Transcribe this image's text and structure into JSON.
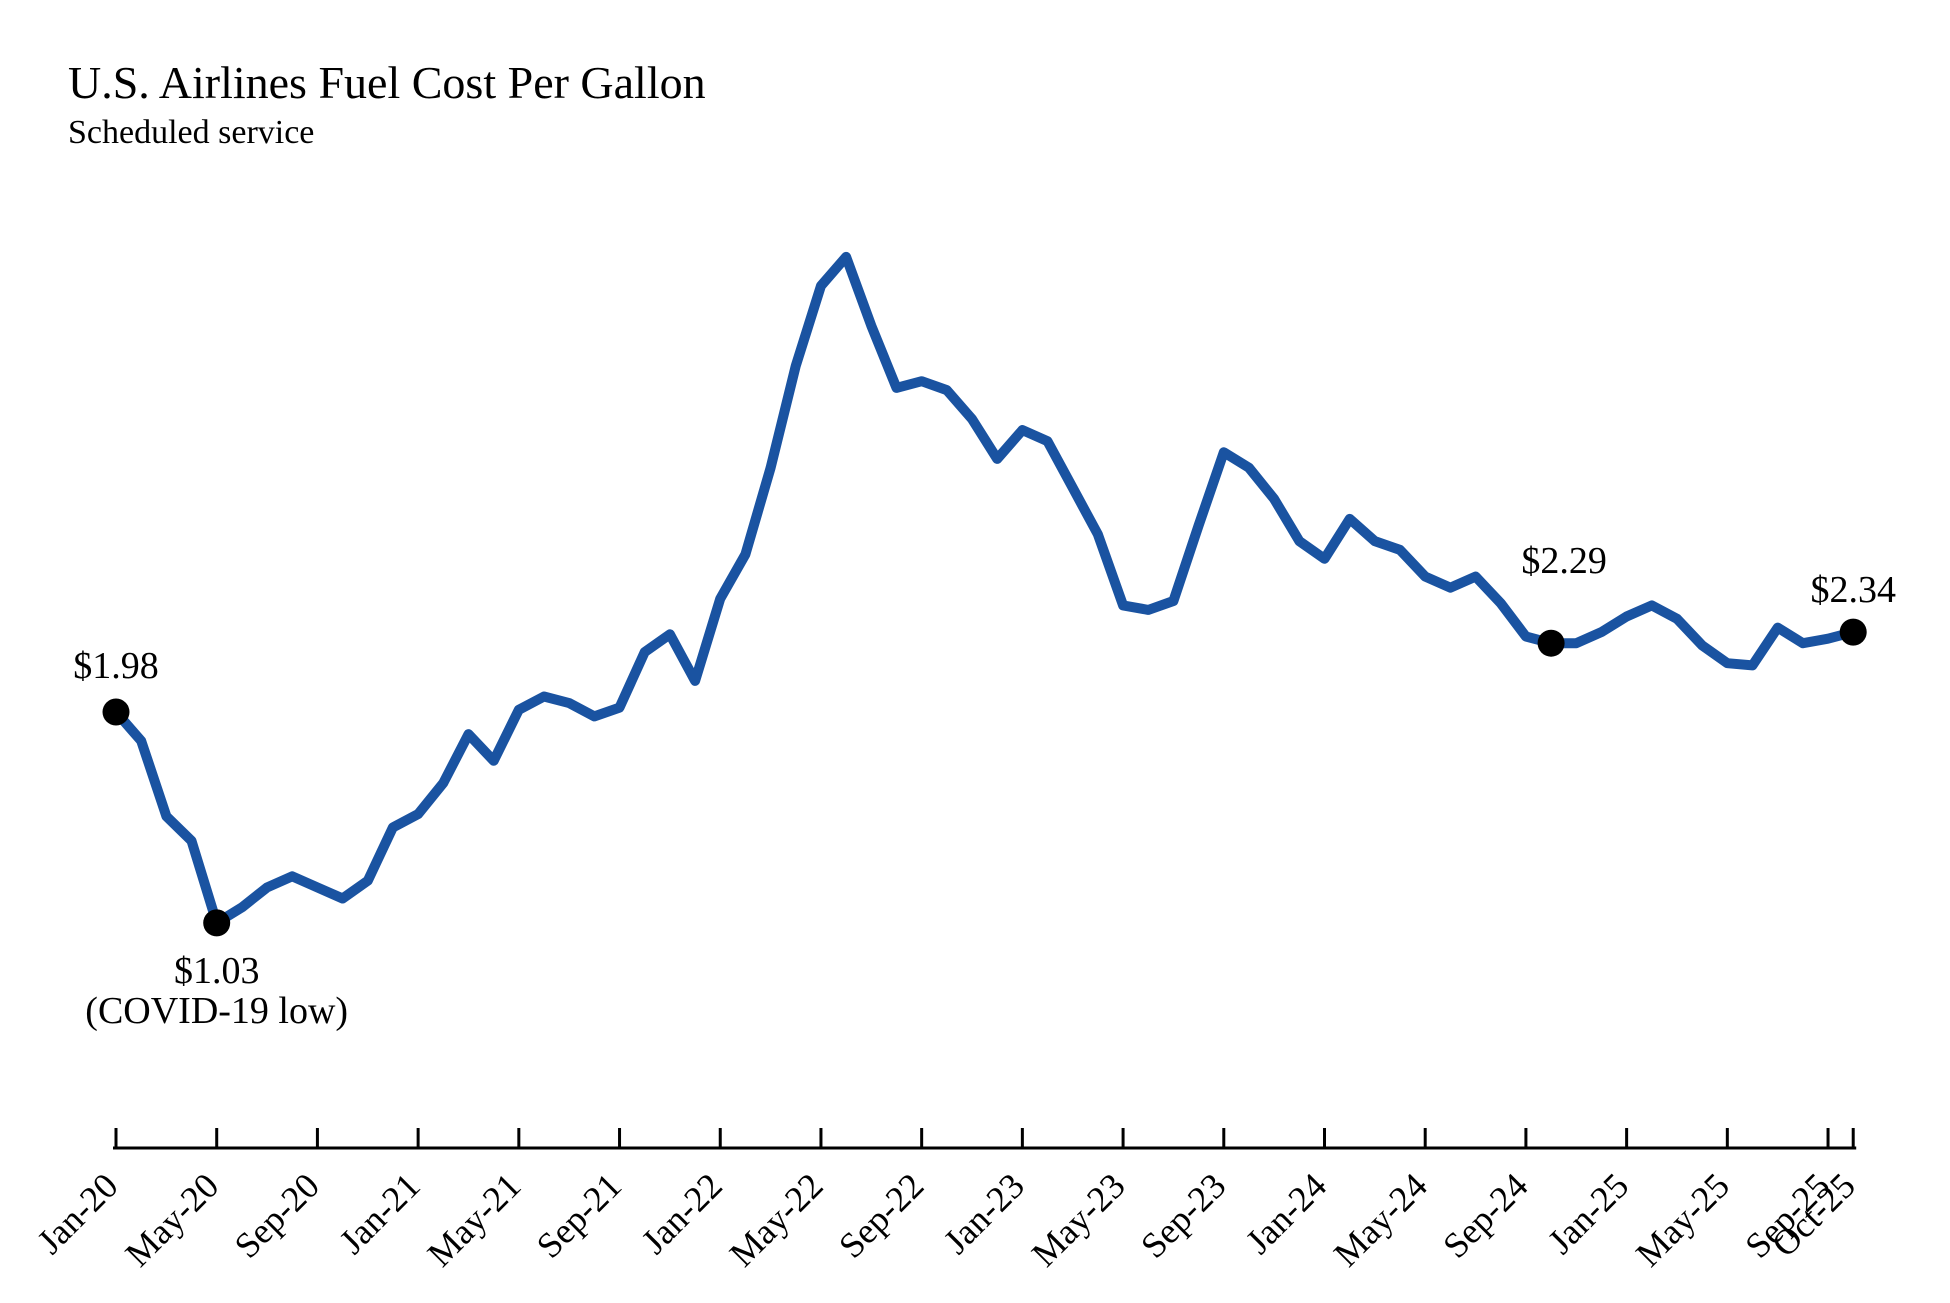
{
  "chart_data": {
    "type": "line",
    "title": "U.S. Airlines Fuel Cost Per Gallon",
    "subtitle": "Scheduled service",
    "unit": "USD per gallon",
    "x_months": [
      "Jan-20",
      "Feb-20",
      "Mar-20",
      "Apr-20",
      "May-20",
      "Jun-20",
      "Jul-20",
      "Aug-20",
      "Sep-20",
      "Oct-20",
      "Nov-20",
      "Dec-20",
      "Jan-21",
      "Feb-21",
      "Mar-21",
      "Apr-21",
      "May-21",
      "Jun-21",
      "Jul-21",
      "Aug-21",
      "Sep-21",
      "Oct-21",
      "Nov-21",
      "Dec-21",
      "Jan-22",
      "Feb-22",
      "Mar-22",
      "Apr-22",
      "May-22",
      "Jun-22",
      "Jul-22",
      "Aug-22",
      "Sep-22",
      "Oct-22",
      "Nov-22",
      "Dec-22",
      "Jan-23",
      "Feb-23",
      "Mar-23",
      "Apr-23",
      "May-23",
      "Jun-23",
      "Jul-23",
      "Aug-23",
      "Sep-23",
      "Oct-23",
      "Nov-23",
      "Dec-23",
      "Jan-24",
      "Feb-24",
      "Mar-24",
      "Apr-24",
      "May-24",
      "Jun-24",
      "Jul-24",
      "Aug-24",
      "Sep-24",
      "Oct-24",
      "Nov-24",
      "Dec-24",
      "Jan-25",
      "Feb-25",
      "Mar-25",
      "Apr-25",
      "May-25",
      "Jun-25",
      "Jul-25",
      "Aug-25",
      "Sep-25",
      "Oct-25"
    ],
    "values": [
      1.98,
      1.85,
      1.51,
      1.4,
      1.03,
      1.1,
      1.19,
      1.24,
      1.19,
      1.14,
      1.22,
      1.46,
      1.52,
      1.66,
      1.88,
      1.76,
      1.99,
      2.05,
      2.02,
      1.96,
      2.0,
      2.25,
      2.33,
      2.12,
      2.49,
      2.69,
      3.08,
      3.54,
      3.9,
      4.03,
      3.72,
      3.44,
      3.47,
      3.43,
      3.3,
      3.12,
      3.25,
      3.2,
      2.99,
      2.78,
      2.46,
      2.44,
      2.48,
      2.82,
      3.15,
      3.08,
      2.94,
      2.75,
      2.67,
      2.85,
      2.75,
      2.71,
      2.59,
      2.54,
      2.59,
      2.47,
      2.32,
      2.29,
      2.29,
      2.34,
      2.41,
      2.46,
      2.4,
      2.28,
      2.2,
      2.19,
      2.36,
      2.29,
      2.31,
      2.34
    ],
    "x_ticks": [
      {
        "index": 0,
        "label": "Jan-20"
      },
      {
        "index": 4,
        "label": "May-20"
      },
      {
        "index": 8,
        "label": "Sep-20"
      },
      {
        "index": 12,
        "label": "Jan-21"
      },
      {
        "index": 16,
        "label": "May-21"
      },
      {
        "index": 20,
        "label": "Sep-21"
      },
      {
        "index": 24,
        "label": "Jan-22"
      },
      {
        "index": 28,
        "label": "May-22"
      },
      {
        "index": 32,
        "label": "Sep-22"
      },
      {
        "index": 36,
        "label": "Jan-23"
      },
      {
        "index": 40,
        "label": "May-23"
      },
      {
        "index": 44,
        "label": "Sep-23"
      },
      {
        "index": 48,
        "label": "Jan-24"
      },
      {
        "index": 52,
        "label": "May-24"
      },
      {
        "index": 56,
        "label": "Sep-24"
      },
      {
        "index": 60,
        "label": "Jan-25"
      },
      {
        "index": 64,
        "label": "May-25"
      },
      {
        "index": 68,
        "label": "Sep-25"
      },
      {
        "index": 69,
        "label": "Oct-25"
      }
    ],
    "annotations": [
      {
        "index": 0,
        "month": "Jan-20",
        "value": 1.98,
        "lines": [
          "$1.98"
        ],
        "placement": "above"
      },
      {
        "index": 4,
        "month": "May-20",
        "value": 1.03,
        "lines": [
          "$1.03",
          "(COVID-19 low)"
        ],
        "placement": "below"
      },
      {
        "index": 57,
        "month": "Oct-24",
        "value": 2.29,
        "lines": [
          "$2.29"
        ],
        "placement": "above-far"
      },
      {
        "index": 69,
        "month": "Oct-25",
        "value": 2.34,
        "lines": [
          "$2.34"
        ],
        "placement": "above-close"
      }
    ],
    "style": {
      "line_color": "#1a53a1",
      "dot_color": "#000000",
      "axis_color": "#000000",
      "text_color": "#000000",
      "background": "#ffffff"
    },
    "layout_hints": {
      "grid": false,
      "y_axis_visible": false,
      "legend": "none",
      "x_range": [
        "Jan-20",
        "Oct-25"
      ],
      "y_value_range": [
        1.03,
        4.03
      ]
    }
  }
}
